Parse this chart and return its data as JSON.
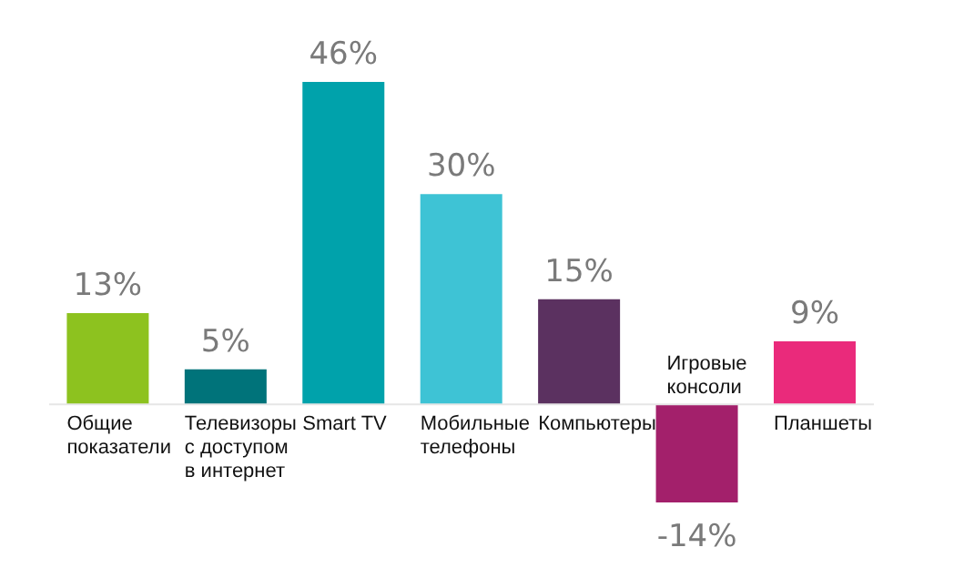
{
  "chart_data": {
    "type": "bar",
    "categories": [
      "Общие показатели",
      "Телевизоры с доступом в интернет",
      "Smart TV",
      "Мобильные телефоны",
      "Компьютеры",
      "Игровые консоли",
      "Планшеты"
    ],
    "values": [
      13,
      5,
      46,
      30,
      15,
      -14,
      9
    ],
    "colors": [
      "#8dc21f",
      "#00737a",
      "#00a2ab",
      "#3ec3d5",
      "#5b3160",
      "#a3206b",
      "#ea2a7b"
    ],
    "value_labels": [
      "13%",
      "5%",
      "46%",
      "30%",
      "15%",
      "-14%",
      "9%"
    ]
  }
}
